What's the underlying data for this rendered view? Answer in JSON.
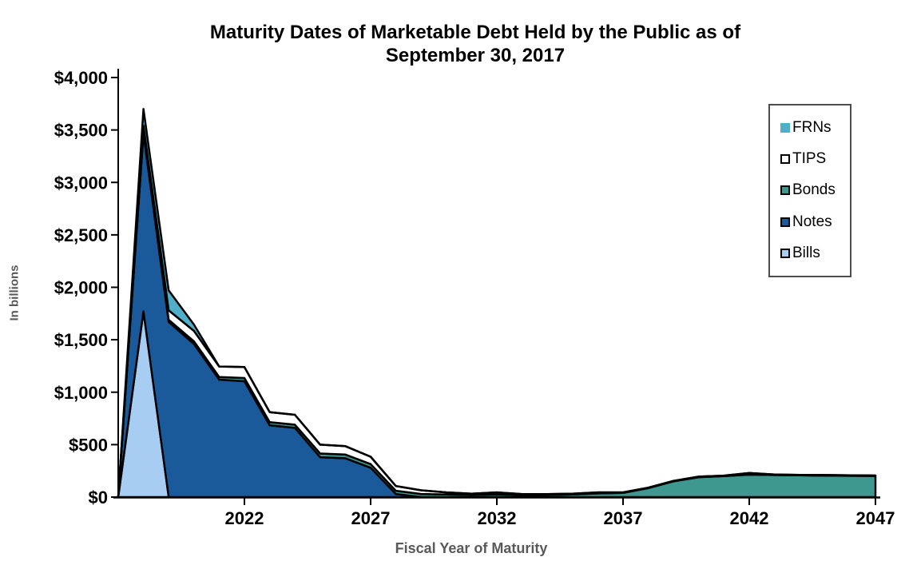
{
  "title": {
    "line1": "Maturity Dates of Marketable Debt Held by the Public as of",
    "line2": "September 30, 2017"
  },
  "y_axis": {
    "label": "In billions",
    "tick_values": [
      0,
      500,
      1000,
      1500,
      2000,
      2500,
      3000,
      3500,
      4000
    ],
    "tick_labels": [
      "$0",
      "$500",
      "$1,000",
      "$1,500",
      "$2,000",
      "$2,500",
      "$3,000",
      "$3,500",
      "$4,000"
    ]
  },
  "x_axis": {
    "label": "Fiscal Year of Maturity",
    "tick_years": [
      2022,
      2027,
      2032,
      2037,
      2042,
      2047
    ]
  },
  "legend": {
    "items": [
      {
        "label": "FRNs",
        "color": "#4FAEC8",
        "bordered": false
      },
      {
        "label": "TIPS",
        "color": "#FFFFFF",
        "bordered": true
      },
      {
        "label": "Bonds",
        "color": "#3F9890",
        "bordered": true
      },
      {
        "label": "Notes",
        "color": "#1A5A9B",
        "bordered": true
      },
      {
        "label": "Bills",
        "color": "#A7CDF2",
        "bordered": true
      }
    ]
  },
  "chart_data": {
    "type": "area",
    "stacked": true,
    "title": "Maturity Dates of Marketable Debt Held by the Public as of September 30, 2017",
    "xlabel": "Fiscal Year of Maturity",
    "ylabel": "In billions",
    "ylim": [
      0,
      4000
    ],
    "grid": false,
    "legend_position": "upper right",
    "outline_color": "#000000",
    "x": [
      2017,
      2018,
      2019,
      2020,
      2021,
      2022,
      2023,
      2024,
      2025,
      2026,
      2027,
      2028,
      2029,
      2030,
      2031,
      2032,
      2033,
      2034,
      2035,
      2036,
      2037,
      2038,
      2039,
      2040,
      2041,
      2042,
      2043,
      2044,
      2045,
      2046,
      2047
    ],
    "series": [
      {
        "name": "Bills",
        "color": "#A7CDF2",
        "values": [
          0,
          1770,
          0,
          0,
          0,
          0,
          0,
          0,
          0,
          0,
          0,
          0,
          0,
          0,
          0,
          0,
          0,
          0,
          0,
          0,
          0,
          0,
          0,
          0,
          0,
          0,
          0,
          0,
          0,
          0,
          0
        ]
      },
      {
        "name": "Notes",
        "color": "#1A5A9B",
        "values": [
          0,
          1700,
          1670,
          1460,
          1120,
          1105,
          685,
          660,
          380,
          370,
          280,
          30,
          0,
          0,
          0,
          0,
          0,
          0,
          0,
          0,
          0,
          0,
          0,
          0,
          0,
          0,
          0,
          0,
          0,
          0,
          0
        ]
      },
      {
        "name": "Bonds",
        "color": "#3F9890",
        "values": [
          0,
          20,
          20,
          25,
          25,
          30,
          30,
          30,
          35,
          35,
          35,
          30,
          30,
          25,
          20,
          25,
          18,
          20,
          25,
          35,
          40,
          85,
          150,
          190,
          200,
          214,
          210,
          207,
          205,
          203,
          201
        ]
      },
      {
        "name": "TIPS",
        "color": "#FFFFFF",
        "values": [
          0,
          50,
          90,
          100,
          100,
          105,
          95,
          95,
          85,
          80,
          70,
          45,
          35,
          20,
          13,
          20,
          10,
          8,
          8,
          10,
          5,
          5,
          5,
          5,
          5,
          15,
          5,
          5,
          5,
          5,
          5
        ]
      },
      {
        "name": "FRNs",
        "color": "#4FAEC8",
        "values": [
          0,
          160,
          190,
          60,
          0,
          0,
          0,
          0,
          0,
          0,
          0,
          0,
          0,
          0,
          0,
          0,
          0,
          0,
          0,
          0,
          0,
          0,
          0,
          0,
          0,
          0,
          0,
          0,
          0,
          0,
          0
        ]
      }
    ]
  }
}
